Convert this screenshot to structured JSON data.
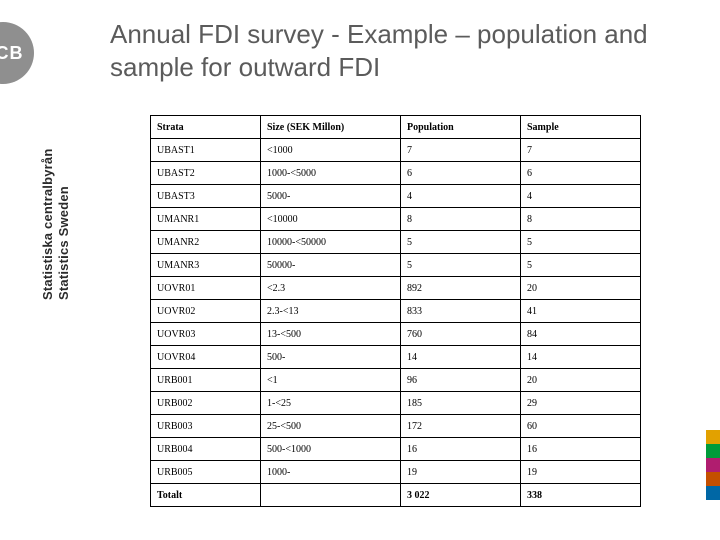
{
  "logo_text": "SCB",
  "side_label_sv": "Statistiska centralbyrån",
  "side_label_en": "Statistics Sweden",
  "title": "Annual FDI survey - Example – population and sample for outward FDI",
  "table": {
    "columns": [
      "Strata",
      "Size (SEK Millon)",
      "Population",
      "Sample"
    ],
    "rows": [
      [
        "UBAST1",
        "<1000",
        "7",
        "7"
      ],
      [
        "UBAST2",
        "1000-<5000",
        "6",
        "6"
      ],
      [
        "UBAST3",
        "5000-",
        "4",
        "4"
      ],
      [
        "UMANR1",
        "<10000",
        "8",
        "8"
      ],
      [
        "UMANR2",
        "10000-<50000",
        "5",
        "5"
      ],
      [
        "UMANR3",
        "50000-",
        "5",
        "5"
      ],
      [
        "UOVR01",
        "<2.3",
        "892",
        "20"
      ],
      [
        "UOVR02",
        "2.3-<13",
        "833",
        "41"
      ],
      [
        "UOVR03",
        "13-<500",
        "760",
        "84"
      ],
      [
        "UOVR04",
        "500-",
        "14",
        "14"
      ],
      [
        "URB001",
        "<1",
        "96",
        "20"
      ],
      [
        "URB002",
        "1-<25",
        "185",
        "29"
      ],
      [
        "URB003",
        "25-<500",
        "172",
        "60"
      ],
      [
        "URB004",
        "500-<1000",
        "16",
        "16"
      ],
      [
        "URB005",
        "1000-",
        "19",
        "19"
      ],
      [
        "Totalt",
        "",
        "3 022",
        "338"
      ]
    ],
    "header_fontweight": "bold",
    "border_color": "#000000",
    "cell_fontsize": 10,
    "font_family": "Times New Roman"
  },
  "accent_colors": [
    "#e2a100",
    "#009b3a",
    "#b01d6f",
    "#c44f00",
    "#0067a5"
  ],
  "title_color": "#5b5b5b",
  "title_fontsize": 26,
  "logo_bg": "#8f8f8f",
  "logo_fg": "#ffffff",
  "background_color": "#ffffff"
}
